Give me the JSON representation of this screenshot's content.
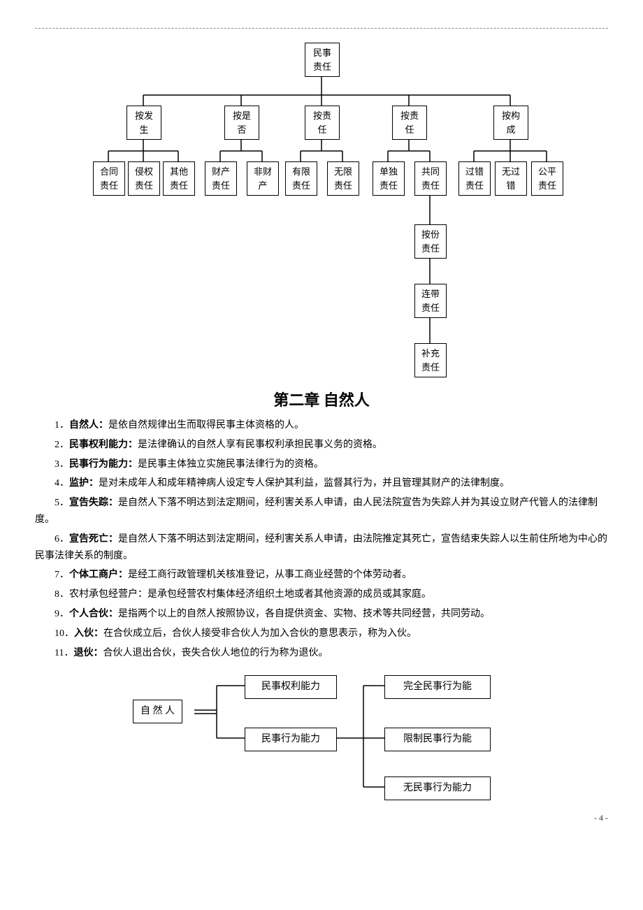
{
  "tree": {
    "root": "民事\n责任",
    "branches": [
      {
        "label": "按发\n生",
        "children": [
          "合同\n责任",
          "侵权\n责任",
          "其他\n责任"
        ]
      },
      {
        "label": "按是\n否",
        "children": [
          "财产\n责任",
          "非财\n产"
        ]
      },
      {
        "label": "按责\n任",
        "children": [
          "有限\n责任",
          "无限\n责任"
        ]
      },
      {
        "label": "按责\n任",
        "children": [
          "单独\n责任",
          "共同\n责任"
        ]
      },
      {
        "label": "按构\n成",
        "children": [
          "过错\n责任",
          "无过\n错",
          "公平\n责任"
        ]
      }
    ],
    "co_children": [
      "按份\n责任",
      "连带\n责任",
      "补充\n责任"
    ]
  },
  "chapter_title": "第二章  自然人",
  "definitions": [
    {
      "n": "1",
      "term": "自然人：",
      "text": "是依自然规律出生而取得民事主体资格的人。"
    },
    {
      "n": "2",
      "term": "民事权利能力：",
      "text": "是法律确认的自然人享有民事权利承担民事义务的资格。"
    },
    {
      "n": "3",
      "term": "民事行为能力：",
      "text": "是民事主体独立实施民事法律行为的资格。"
    },
    {
      "n": "4",
      "term": "监护：",
      "text": "是对未成年人和成年精神病人设定专人保护其利益，监督其行为，并且管理其财产的法律制度。"
    },
    {
      "n": "5",
      "term": "宣告失踪：",
      "text": "是自然人下落不明达到法定期间，经利害关系人申请，由人民法院宣告为失踪人并为其设立财产代管人的法律制度。"
    },
    {
      "n": "6",
      "term": "宣告死亡：",
      "text": "是自然人下落不明达到法定期间，经利害关系人申请，由法院推定其死亡，宣告结束失踪人以生前住所地为中心的民事法律关系的制度。"
    },
    {
      "n": "7",
      "term": "个体工商户：",
      "text": "是经工商行政管理机关核准登记，从事工商业经营的个体劳动者。"
    },
    {
      "n": "8",
      "term": "",
      "text": "农村承包经营户：是承包经营农村集体经济组织土地或者其他资源的成员或其家庭。"
    },
    {
      "n": "9",
      "term": "个人合伙：",
      "text": "是指两个以上的自然人按照协议，各自提供资金、实物、技术等共同经营，共同劳动。"
    },
    {
      "n": "10",
      "term": "入伙：",
      "text": "在合伙成立后，合伙人接受非合伙人为加入合伙的意思表示，称为入伙。"
    },
    {
      "n": "11",
      "term": "退伙：",
      "text": "合伙人退出合伙，丧失合伙人地位的行为称为退伙。"
    }
  ],
  "mini": {
    "root": "自 然 人",
    "mid": [
      "民事权利能力",
      "民事行为能力"
    ],
    "right": [
      "完全民事行为能",
      "限制民事行为能",
      "无民事行为能力"
    ]
  },
  "page_number": "- 4 -",
  "style": {
    "stroke": "#000000",
    "stroke_width": 1.5
  }
}
